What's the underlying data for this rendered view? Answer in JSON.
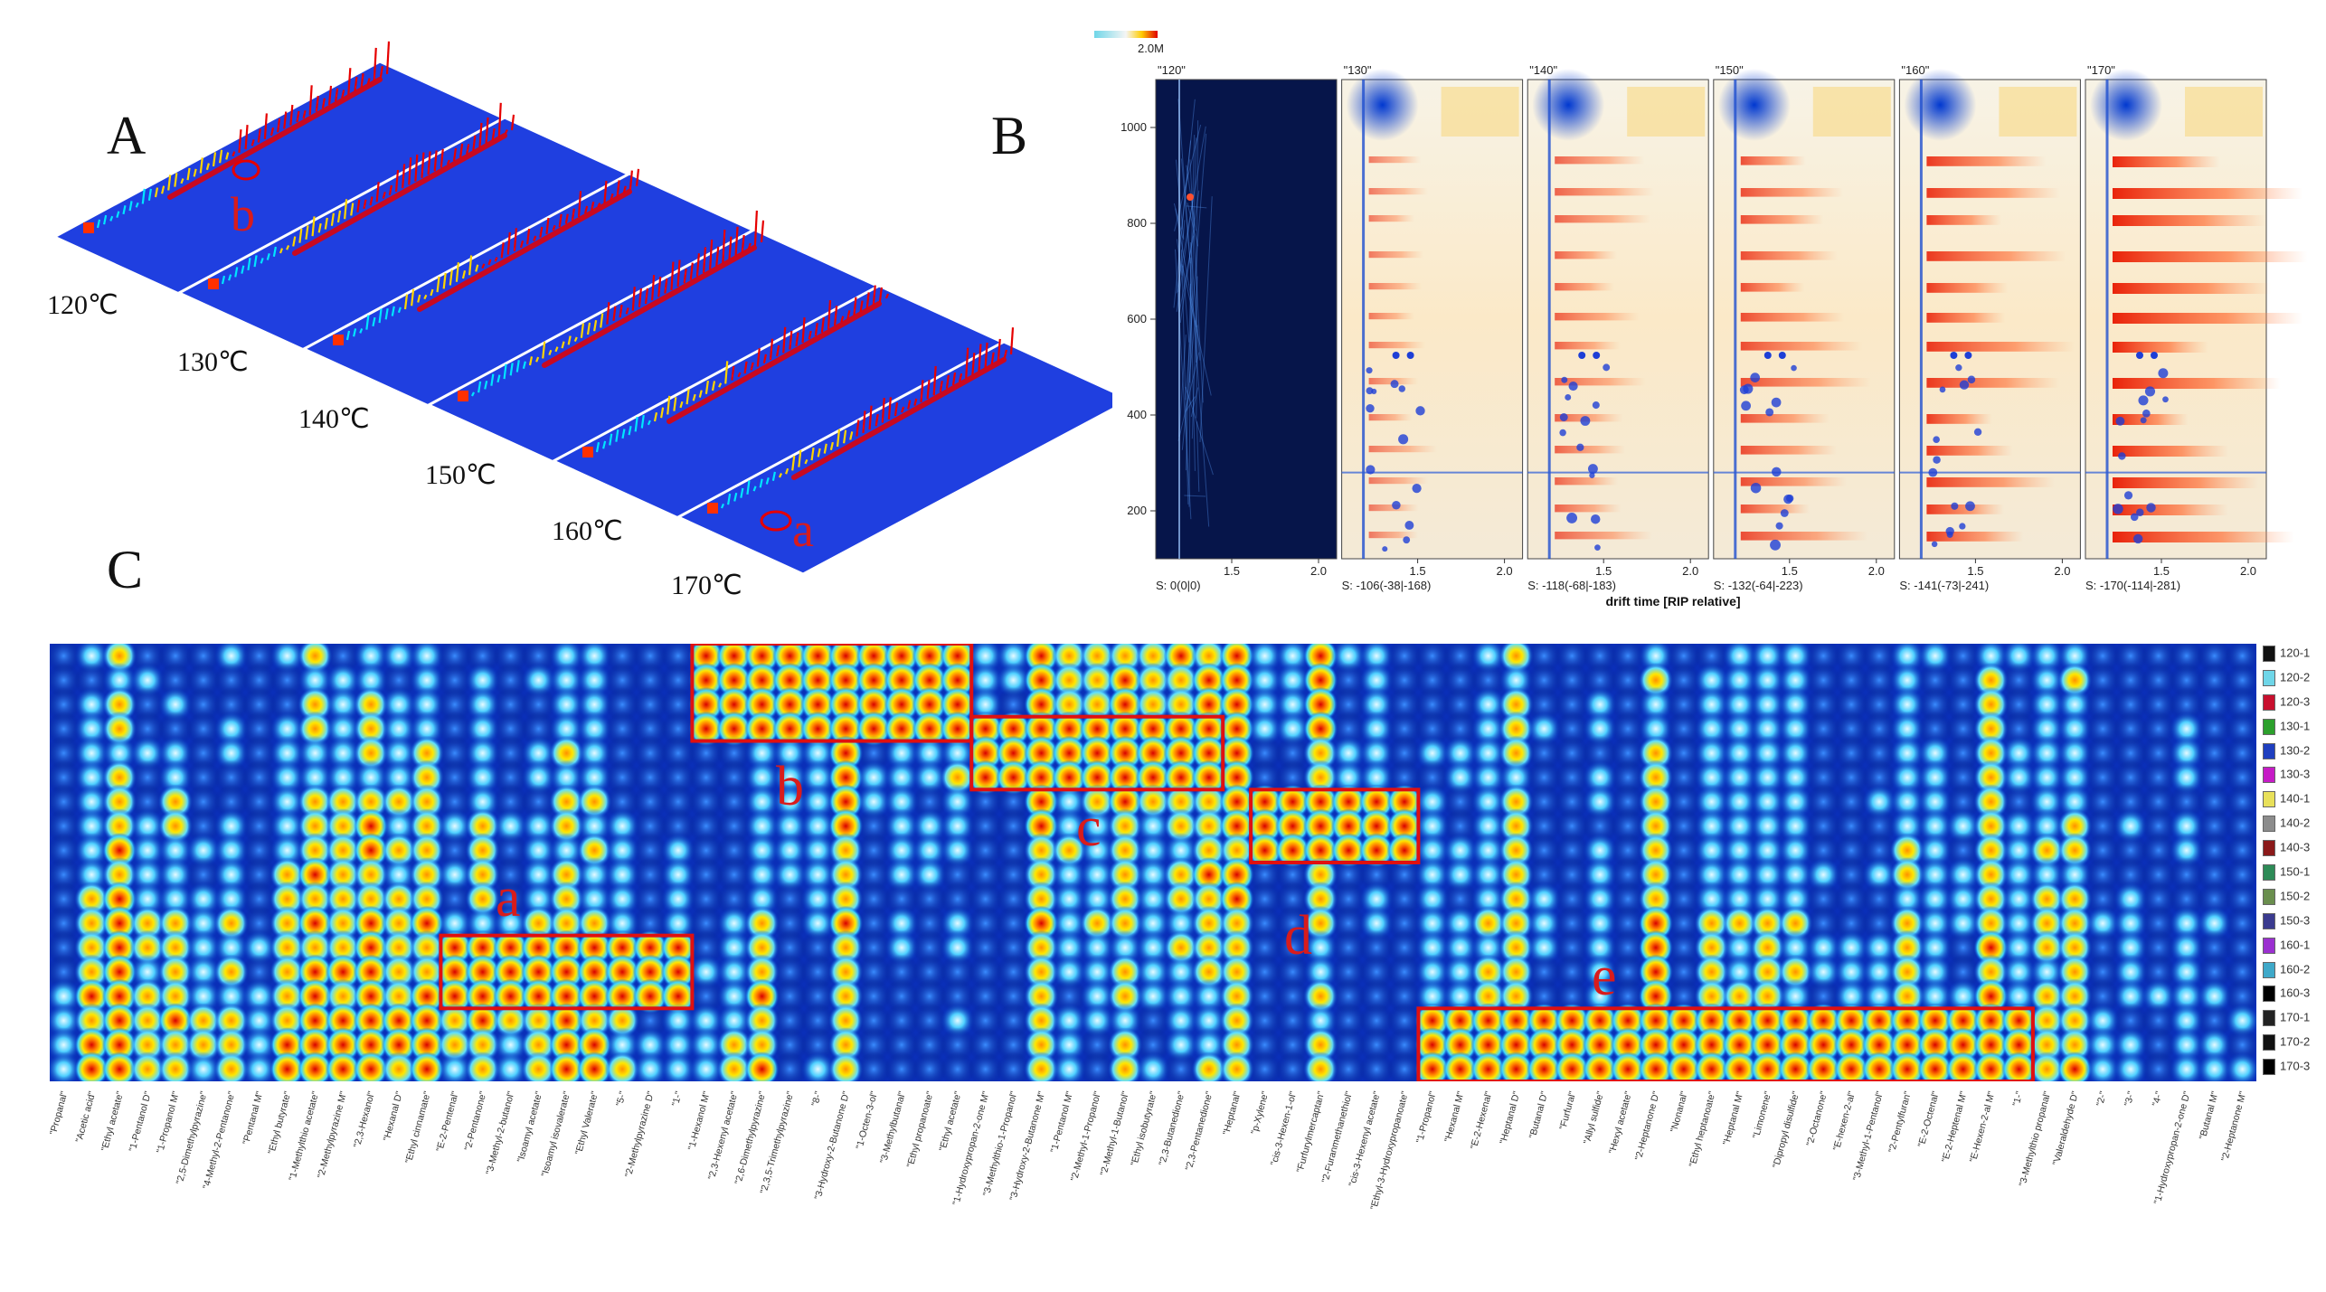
{
  "panels": {
    "a": "A",
    "b": "B",
    "c": "C"
  },
  "panel_a": {
    "temperatures": [
      "120℃",
      "130℃",
      "140℃",
      "150℃",
      "160℃",
      "170℃"
    ],
    "markers": [
      "b",
      "a"
    ]
  },
  "panel_b": {
    "colorbar_label": "2.0M",
    "xlabel": "drift time [RIP relative]",
    "yticks": [
      "1000",
      "800",
      "600",
      "400",
      "200"
    ],
    "xticks": [
      "1.5",
      "2.0"
    ],
    "samples": [
      {
        "name": "\"120\"",
        "stat": "S: 0(0|0)"
      },
      {
        "name": "\"130\"",
        "stat": "S: -106(-38|-168)"
      },
      {
        "name": "\"140\"",
        "stat": "S: -118(-68|-183)"
      },
      {
        "name": "\"150\"",
        "stat": "S: -132(-64|-223)"
      },
      {
        "name": "\"160\"",
        "stat": "S: -141(-73|-241)"
      },
      {
        "name": "\"170\"",
        "stat": "S: -170(-114|-281)"
      }
    ]
  },
  "panel_c": {
    "region_letters": [
      "a",
      "b",
      "c",
      "d",
      "e"
    ],
    "legend": [
      {
        "label": "120-1",
        "color": "#111111"
      },
      {
        "label": "120-2",
        "color": "#6fd6e8"
      },
      {
        "label": "120-3",
        "color": "#c8102e"
      },
      {
        "label": "130-1",
        "color": "#2ca02c"
      },
      {
        "label": "130-2",
        "color": "#1f3fbf"
      },
      {
        "label": "130-3",
        "color": "#c61bc6"
      },
      {
        "label": "140-1",
        "color": "#e8e05a"
      },
      {
        "label": "140-2",
        "color": "#8c8c8c"
      },
      {
        "label": "140-3",
        "color": "#8b1a1a"
      },
      {
        "label": "150-1",
        "color": "#2e8b57"
      },
      {
        "label": "150-2",
        "color": "#6a8e4e"
      },
      {
        "label": "150-3",
        "color": "#3b3b8f"
      },
      {
        "label": "160-1",
        "color": "#9b30d0"
      },
      {
        "label": "160-2",
        "color": "#3fa9c9"
      },
      {
        "label": "160-3",
        "color": "#000000"
      },
      {
        "label": "170-1",
        "color": "#222222"
      },
      {
        "label": "170-2",
        "color": "#111111"
      },
      {
        "label": "170-3",
        "color": "#000000"
      }
    ],
    "compounds": [
      "\"Propanal\"",
      "\"Acetic acid\"",
      "\"Ethyl acetate\"",
      "\"1-Pentanol D\"",
      "\"1-Propanol M\"",
      "\"2,5-Dimethylpyrazine\"",
      "\"4-Methyl-2-Pentanone\"",
      "\"Pentanal M\"",
      "\"Ethyl butyrate\"",
      "\"1-Methylthio acetate\"",
      "\"2-Methylpyrazine M\"",
      "\"2,3-Hexanol\"",
      "\"Hexanal D\"",
      "\"Ethyl cinnamate\"",
      "\"E-2-Pentenal\"",
      "\"2-Pentanone\"",
      "\"3-Methyl-2-butanol\"",
      "\"Isoamyl acetate\"",
      "\"Isoamyl isovalerate\"",
      "\"Ethyl Valerate\"",
      "\"5-\"",
      "\"2-Methylpyrazine D\"",
      "\"1-\"",
      "\"1-Hexanol M\"",
      "\"2,3-Hexenyl acetate\"",
      "\"2,6-Dimethylpyrazine\"",
      "\"2,3,5-Trimethylpyrazine\"",
      "\"8-\"",
      "\"3-Hydroxy-2-Butanone D\"",
      "\"1-Octen-3-ol\"",
      "\"3-Methylbutanal\"",
      "\"Ethyl propanoate\"",
      "\"Ethyl acetate\"",
      "\"1-Hydroxypropan-2-one M\"",
      "\"3-Methylthio-1-Propanol\"",
      "\"3-Hydroxy-2-Butanone M\"",
      "\"1-Pentanol M\"",
      "\"2-Methyl-1-Propanol\"",
      "\"2-Methyl-1-Butanol\"",
      "\"Ethyl isobutyrate\"",
      "\"2,3-Butanedione\"",
      "\"2,3-Pentanedione\"",
      "\"Heptanal\"",
      "\"p-Xylene\"",
      "\"cis-3-Hexen-1-ol\"",
      "\"Furfurylmercaptan\"",
      "\"2-Furanmethanethiol\"",
      "\"cis-3-Hexenyl acetate\"",
      "\"Ethyl-3-Hydroxypropanoate\"",
      "\"1-Propanol\"",
      "\"Hexanal M\"",
      "\"E-2-Hexenal\"",
      "\"Heptanal D\"",
      "\"Butanal D\"",
      "\"Furfural\"",
      "\"Allyl sulfide\"",
      "\"Hexyl acetate\"",
      "\"2-Heptanone D\"",
      "\"Nonanal\"",
      "\"Ethyl heptanoate\"",
      "\"Heptanal M\"",
      "\"Limonene\"",
      "\"Dipropyl disulfide\"",
      "\"2-Octanone\"",
      "\"E-hexen-2-al\"",
      "\"3-Methyl-1-Pentanol\"",
      "\"2-Pentylfuran\"",
      "\"E-2-Octenal\"",
      "\"E-2-Heptenal M\"",
      "\"E-Hexen-2-al M\"",
      "\"1-\"",
      "\"3-Methylthio propanal\"",
      "\"Valeraldehyde D\"",
      "\"2-\"",
      "\"3-\"",
      "\"4-\"",
      "\"1-Hydroxypropan-2-one D\"",
      "\"Butanal M\"",
      "\"2-Heptanone M\""
    ]
  }
}
